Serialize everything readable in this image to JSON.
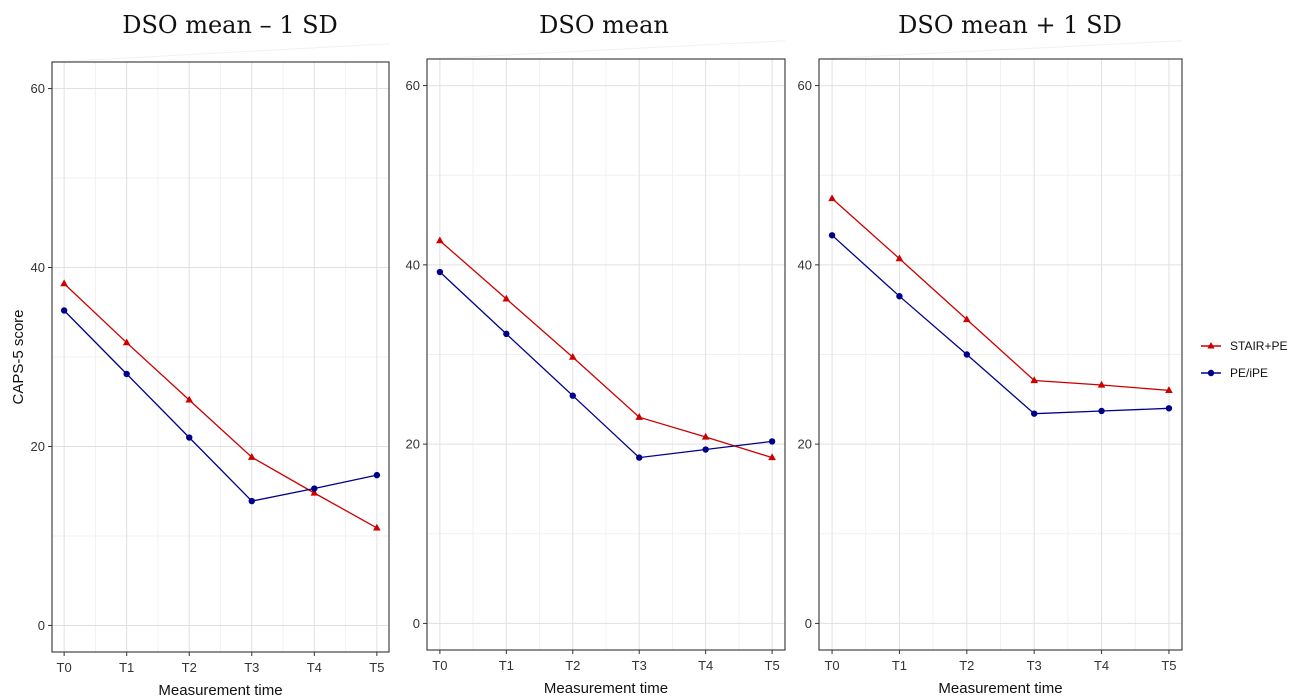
{
  "chart_data": [
    {
      "type": "line",
      "title": "DSO mean – 1 SD",
      "xlabel": "Measurement time",
      "ylabel": "CAPS-5 score",
      "x": [
        "T0",
        "T1",
        "T2",
        "T3",
        "T4",
        "T5"
      ],
      "ylim": [
        0,
        60
      ],
      "yticks": [
        0,
        20,
        40,
        60
      ],
      "grid": true,
      "series": [
        {
          "name": "STAIR+PE",
          "color": "#cc0000",
          "marker": "triangle",
          "values": [
            38.2,
            31.6,
            25.2,
            18.8,
            14.8,
            10.9
          ]
        },
        {
          "name": "PE/iPE",
          "color": "#00008b",
          "marker": "circle",
          "values": [
            35.2,
            28.1,
            21.0,
            13.9,
            15.3,
            16.8
          ]
        }
      ]
    },
    {
      "type": "line",
      "title": "DSO mean",
      "xlabel": "Measurement time",
      "ylabel": "",
      "x": [
        "T0",
        "T1",
        "T2",
        "T3",
        "T4",
        "T5"
      ],
      "ylim": [
        0,
        60
      ],
      "yticks": [
        0,
        20,
        40,
        60
      ],
      "grid": true,
      "series": [
        {
          "name": "STAIR+PE",
          "color": "#cc0000",
          "marker": "triangle",
          "values": [
            42.7,
            36.2,
            29.7,
            23.0,
            20.8,
            18.5
          ]
        },
        {
          "name": "PE/iPE",
          "color": "#00008b",
          "marker": "circle",
          "values": [
            39.2,
            32.3,
            25.4,
            18.5,
            19.4,
            20.3
          ]
        }
      ]
    },
    {
      "type": "line",
      "title": "DSO mean + 1 SD",
      "xlabel": "Measurement time",
      "ylabel": "",
      "x": [
        "T0",
        "T1",
        "T2",
        "T3",
        "T4",
        "T5"
      ],
      "ylim": [
        0,
        60
      ],
      "yticks": [
        0,
        20,
        40,
        60
      ],
      "grid": true,
      "series": [
        {
          "name": "STAIR+PE",
          "color": "#cc0000",
          "marker": "triangle",
          "values": [
            47.4,
            40.7,
            33.9,
            27.1,
            26.6,
            26.0
          ]
        },
        {
          "name": "PE/iPE",
          "color": "#00008b",
          "marker": "circle",
          "values": [
            43.3,
            36.5,
            30.0,
            23.4,
            23.7,
            24.0
          ]
        }
      ]
    }
  ],
  "legend": {
    "placement": "right",
    "items": [
      {
        "label": "STAIR+PE",
        "color": "#cc0000",
        "marker": "triangle"
      },
      {
        "label": "PE/iPE",
        "color": "#00008b",
        "marker": "circle"
      }
    ]
  }
}
